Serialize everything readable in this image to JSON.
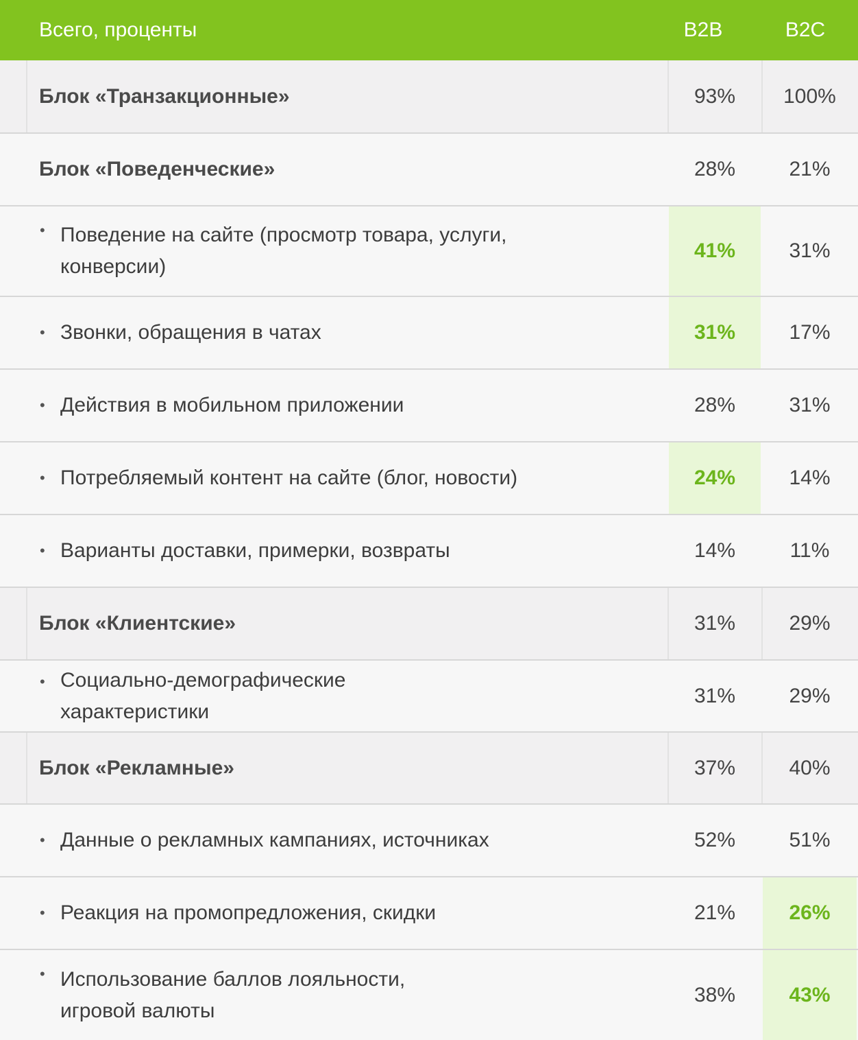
{
  "header": {
    "label": "Всего, проценты",
    "col_b2b": "B2B",
    "col_b2c": "B2C"
  },
  "rows": [
    {
      "type": "block",
      "label": "Блок «Транзакционные»",
      "b2b": "93%",
      "b2c": "100%"
    },
    {
      "type": "block",
      "label": "Блок «Поведенческие»",
      "b2b": "28%",
      "b2c": "21%"
    },
    {
      "type": "sub",
      "label": "Поведение на сайте (просмотр товара, услуги, конверсии)",
      "b2b": "41%",
      "b2c": "31%",
      "highlight": "b2b"
    },
    {
      "type": "sub",
      "label": "Звонки, обращения в чатах",
      "b2b": "31%",
      "b2c": "17%",
      "highlight": "b2b"
    },
    {
      "type": "sub",
      "label": "Действия в мобильном приложении",
      "b2b": "28%",
      "b2c": "31%"
    },
    {
      "type": "sub",
      "label": "Потребляемый контент на сайте (блог, новости)",
      "b2b": "24%",
      "b2c": "14%",
      "highlight": "b2b"
    },
    {
      "type": "sub",
      "label": "Варианты доставки, примерки, возвраты",
      "b2b": "14%",
      "b2c": "11%"
    },
    {
      "type": "block",
      "label": "Блок «Клиентские»",
      "b2b": "31%",
      "b2c": "29%"
    },
    {
      "type": "sub",
      "label": "Социально-демографические характеристики",
      "b2b": "31%",
      "b2c": "29%"
    },
    {
      "type": "block",
      "label": "Блок «Рекламные»",
      "b2b": "37%",
      "b2c": "40%"
    },
    {
      "type": "sub",
      "label": "Данные о рекламных кампаниях, источниках",
      "b2b": "52%",
      "b2c": "51%"
    },
    {
      "type": "sub",
      "label": "Реакция на промопредложения, скидки",
      "b2b": "21%",
      "b2c": "26%",
      "highlight": "b2c"
    },
    {
      "type": "sub",
      "label": "Использование баллов лояльности, игровой валюты",
      "b2b": "38%",
      "b2c": "43%",
      "highlight": "b2c"
    }
  ],
  "colors": {
    "header_bg": "#82c31f",
    "highlight_bg": "#e9f7d7",
    "highlight_text": "#6cb51c"
  }
}
